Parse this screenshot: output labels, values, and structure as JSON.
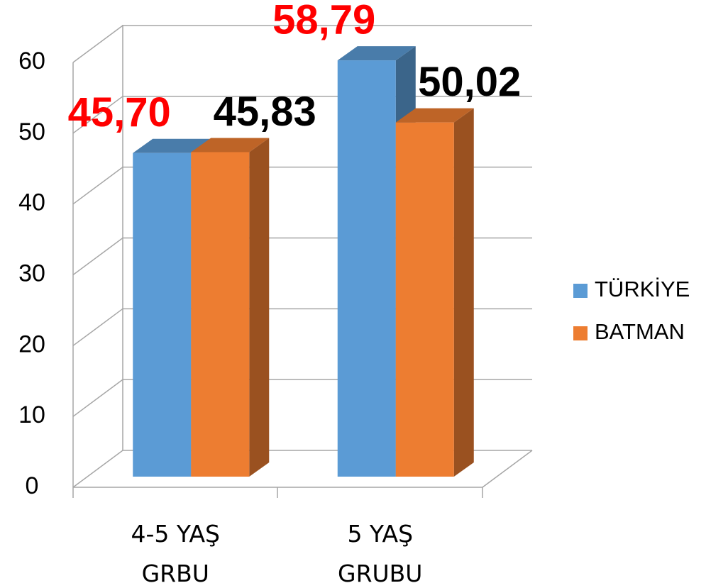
{
  "chart_data": {
    "type": "bar3d",
    "categories": [
      "4-5 YAŞ GRBU",
      "5 YAŞ GRUBU"
    ],
    "series": [
      {
        "name": "TÜRKİYE",
        "color": "#5b9bd5",
        "label_color": "#ff0000",
        "values": [
          45.7,
          58.79
        ],
        "value_labels": [
          "45,70",
          "58,79"
        ]
      },
      {
        "name": "BATMAN",
        "color": "#ed7d31",
        "label_color": "#000000",
        "values": [
          45.83,
          50.02
        ],
        "value_labels": [
          "45,83",
          "50,02"
        ]
      }
    ],
    "ylim": [
      0,
      60
    ],
    "yticks": [
      0,
      10,
      20,
      30,
      40,
      50,
      60
    ],
    "grid": true,
    "legend": "right"
  }
}
